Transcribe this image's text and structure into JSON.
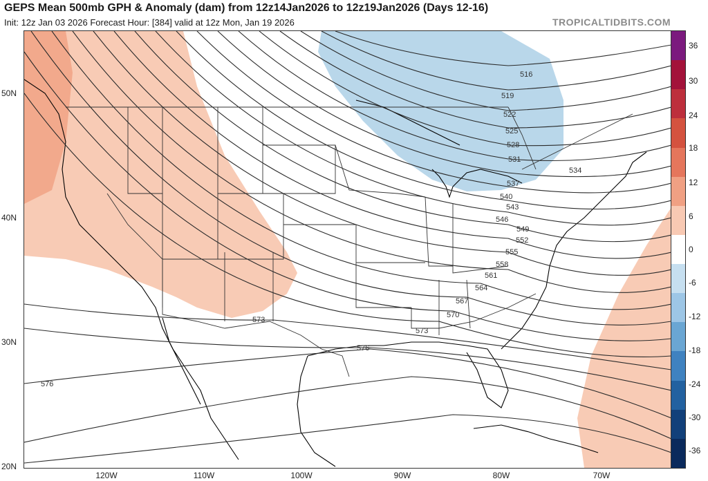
{
  "header": {
    "title": "GEPS Mean 500mb GPH & Anomaly (dam) from 12z14Jan2026 to 12z19Jan2026 (Days 12-16)",
    "subtitle": "Init: 12z Jan 03 2026   Forecast Hour: [384]   valid at 12z Mon, Jan 19 2026",
    "brand": "TROPICALTIDBITS.COM"
  },
  "axes": {
    "latitudes": [
      "50N",
      "40N",
      "30N",
      "20N"
    ],
    "longitudes": [
      "120W",
      "110W",
      "100W",
      "90W",
      "80W",
      "70W"
    ]
  },
  "colorbar": {
    "labels": [
      "36",
      "30",
      "24",
      "18",
      "12",
      "6",
      "0",
      "-6",
      "-12",
      "-18",
      "-24",
      "-30",
      "-36"
    ],
    "colors": [
      "#7b1a7e",
      "#a3123a",
      "#bd2f3c",
      "#d4523f",
      "#e5765c",
      "#f0a083",
      "#f8c9b3",
      "#ffffff",
      "#c6dff0",
      "#9dc6e6",
      "#6aa6d3",
      "#3f82c0",
      "#2261a0",
      "#12407a",
      "#0a2a5c"
    ]
  },
  "contour_labels": [
    "516",
    "519",
    "522",
    "525",
    "528",
    "531",
    "534",
    "537",
    "540",
    "543",
    "546",
    "549",
    "552",
    "555",
    "558",
    "561",
    "564",
    "567",
    "570",
    "573",
    "573",
    "576",
    "576"
  ],
  "colors": {
    "positive_anomaly": "#f8cbb5",
    "positive_anomaly_strong": "#f2a98c",
    "negative_anomaly": "#b9d7ea"
  }
}
